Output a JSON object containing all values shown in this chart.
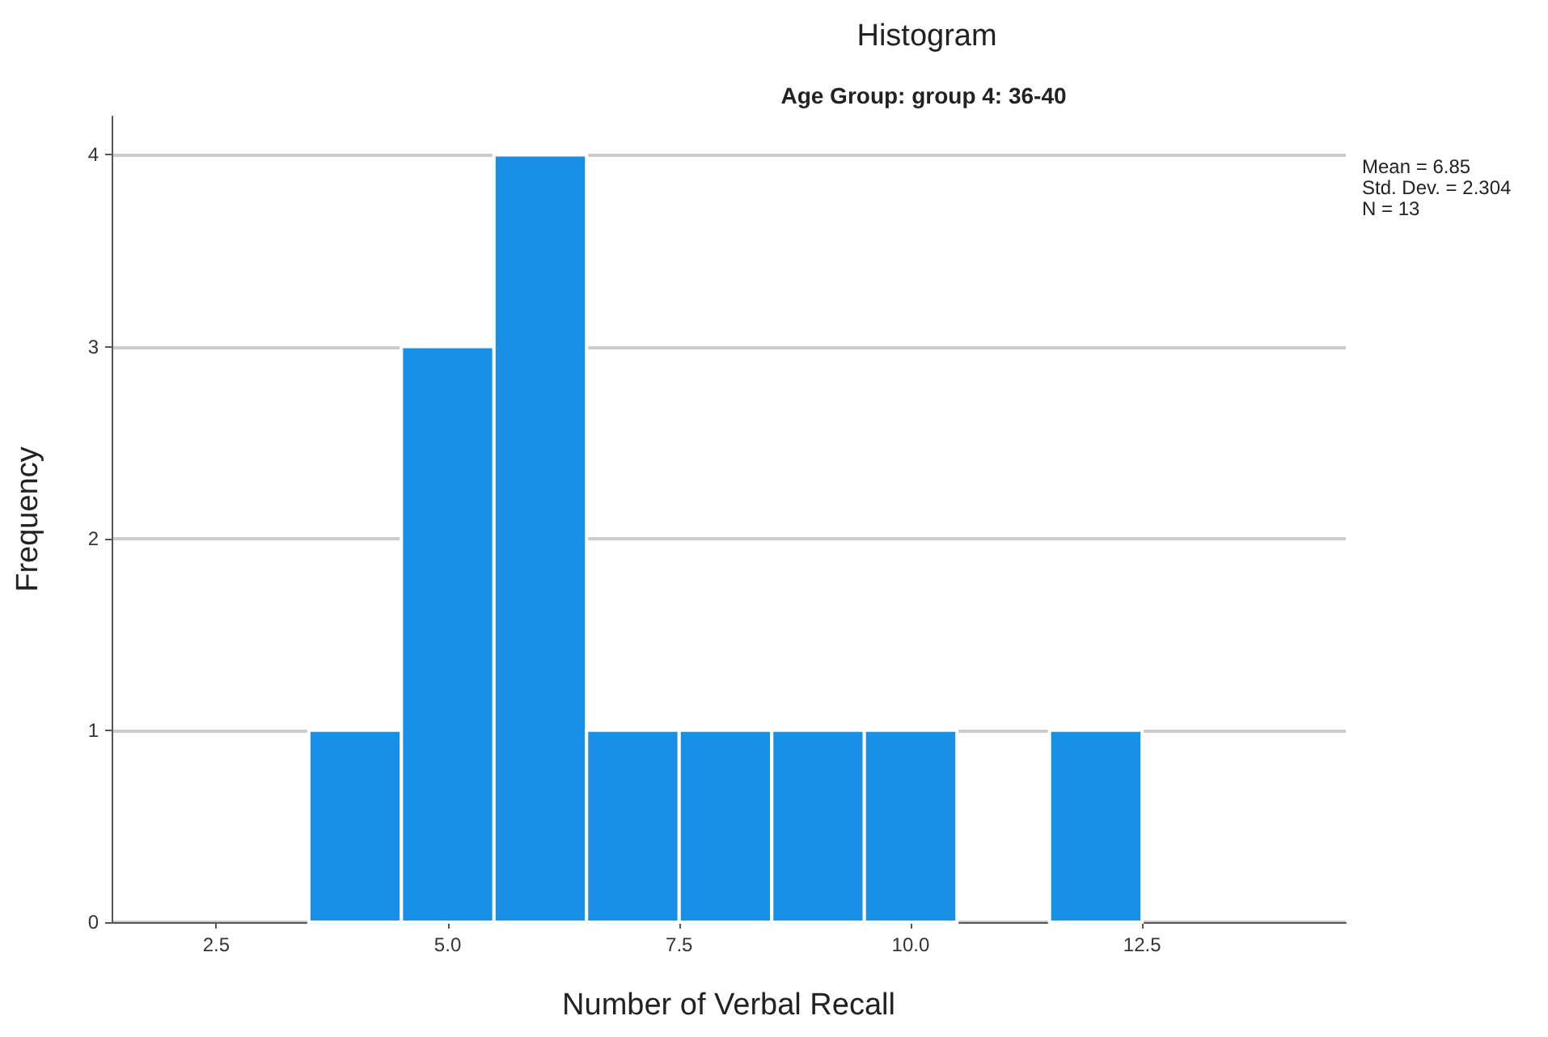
{
  "chart_data": {
    "type": "histogram",
    "title": "Histogram",
    "subtitle": "Age Group: group 4: 36-40",
    "xlabel": "Number of Verbal Recall",
    "ylabel": "Frequency",
    "bins": [
      3.5,
      4.5,
      5.5,
      6.5,
      7.5,
      8.5,
      9.5,
      10.5,
      11.5,
      12.5
    ],
    "values": [
      1,
      3,
      4,
      1,
      1,
      1,
      1,
      0,
      1
    ],
    "color": "#1790e6",
    "xlim": [
      1.37,
      14.7
    ],
    "xticks": [
      2.5,
      {
        "value": 5,
        "label": "5.0"
      },
      7.5,
      {
        "value": 10,
        "label": "10.0"
      },
      12.5
    ],
    "ylim": [
      0,
      4.2
    ],
    "yticks": [
      0,
      1,
      2,
      3,
      4
    ],
    "grid": "y",
    "annotations": [
      "Mean = 6.85",
      "Std. Dev. = 2.304",
      "N = 13"
    ]
  }
}
